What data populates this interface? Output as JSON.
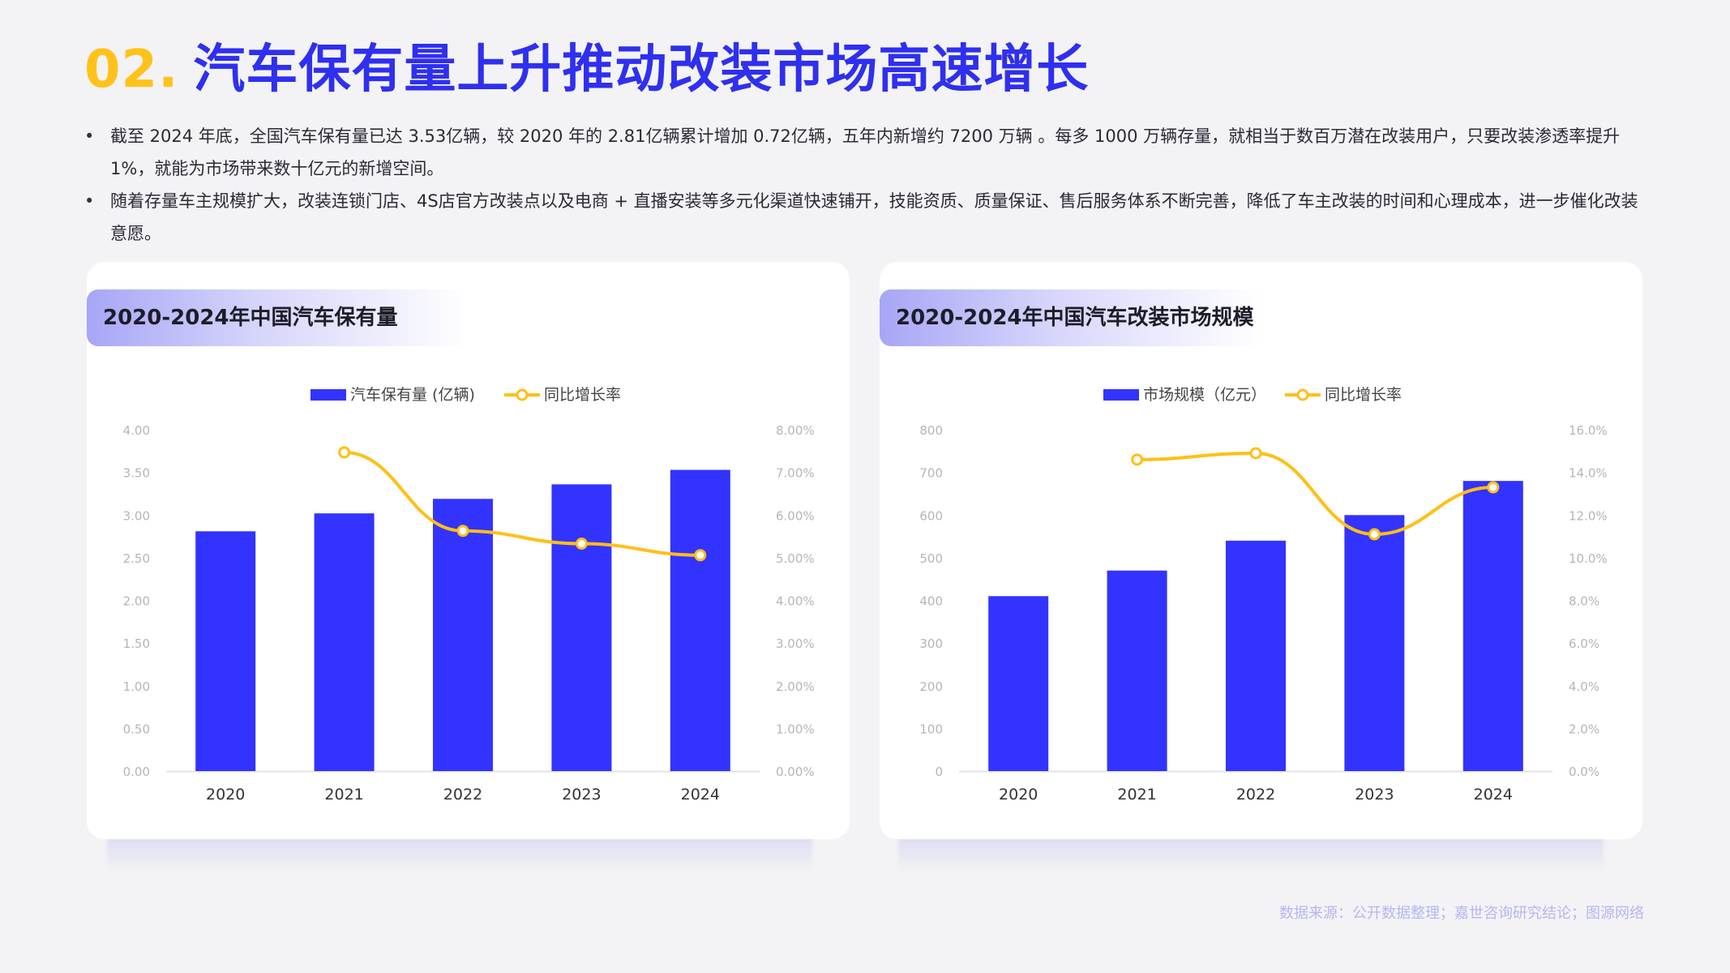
{
  "header": {
    "number": "02.",
    "title": "汽车保有量上升推动改装市场高速增长"
  },
  "bullets": [
    "截至 2024 年底，全国汽车保有量已达 3.53亿辆，较 2020 年的 2.81亿辆累计增加 0.72亿辆，五年内新增约 7200 万辆 。每多 1000 万辆存量，就相当于数百万潜在改装用户，只要改装渗透率提升 1%，就能为市场带来数十亿元的新增空间。",
    "随着存量车主规模扩大，改装连锁门店、4S店官方改装点以及电商 + 直播安装等多元化渠道快速铺开，技能资质、质量保证、售后服务体系不断完善，降低了车主改装的时间和心理成本，进一步催化改装意愿。"
  ],
  "source": "数据来源：公开数据整理；嘉世咨询研究结论；图源网络",
  "colors": {
    "bar": "#3333ff",
    "line": "#ffbf16",
    "accent": "#2f2ff0",
    "number": "#ffc21a"
  },
  "chart_data": [
    {
      "type": "bar",
      "title": "2020-2024年中国汽车保有量",
      "categories": [
        "2020",
        "2021",
        "2022",
        "2023",
        "2024"
      ],
      "series": [
        {
          "name": "汽车保有量 (亿辆)",
          "kind": "bar",
          "axis": "left",
          "values": [
            2.81,
            3.02,
            3.19,
            3.36,
            3.53
          ]
        },
        {
          "name": "同比增长率",
          "kind": "line",
          "axis": "right",
          "values": [
            null,
            7.47,
            5.63,
            5.33,
            5.06
          ]
        }
      ],
      "left_axis": {
        "min": 0,
        "max": 4,
        "ticks": [
          "0.00",
          "0.50",
          "1.00",
          "1.50",
          "2.00",
          "2.50",
          "3.00",
          "3.50",
          "4.00"
        ]
      },
      "right_axis": {
        "min": 0,
        "max": 8,
        "ticks": [
          "0.00%",
          "1.00%",
          "2.00%",
          "3.00%",
          "4.00%",
          "5.00%",
          "6.00%",
          "7.00%",
          "8.00%"
        ]
      },
      "legend": "top-center",
      "grid": false
    },
    {
      "type": "bar",
      "title": "2020-2024年中国汽车改装市场规模",
      "categories": [
        "2020",
        "2021",
        "2022",
        "2023",
        "2024"
      ],
      "series": [
        {
          "name": "市场规模（亿元）",
          "kind": "bar",
          "axis": "left",
          "values": [
            410,
            470,
            540,
            600,
            680
          ]
        },
        {
          "name": "同比增长率",
          "kind": "line",
          "axis": "right",
          "values": [
            null,
            14.6,
            14.9,
            11.1,
            13.3
          ]
        }
      ],
      "left_axis": {
        "min": 0,
        "max": 800,
        "ticks": [
          "0",
          "100",
          "200",
          "300",
          "400",
          "500",
          "600",
          "700",
          "800"
        ]
      },
      "right_axis": {
        "min": 0,
        "max": 16,
        "ticks": [
          "0.0%",
          "2.0%",
          "4.0%",
          "6.0%",
          "8.0%",
          "10.0%",
          "12.0%",
          "14.0%",
          "16.0%"
        ]
      },
      "legend": "top-center",
      "grid": false
    }
  ]
}
